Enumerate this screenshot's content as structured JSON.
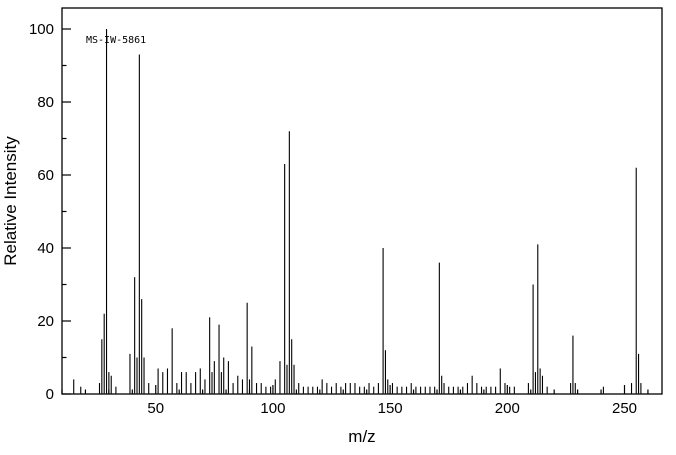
{
  "chart_data": {
    "type": "bar",
    "subtype": "mass-spectrum",
    "title": "",
    "annotation": "MS-IW-5861",
    "xlabel": "m/z",
    "ylabel": "Relative Intensity",
    "xlim": [
      10,
      266
    ],
    "ylim": [
      0,
      100
    ],
    "x_major_ticks": [
      50,
      100,
      150,
      200,
      250
    ],
    "x_minor_step": 10,
    "y_major_ticks": [
      0,
      20,
      40,
      60,
      80,
      100
    ],
    "y_minor_step": 10,
    "line_color": "#000000",
    "background_color": "#ffffff",
    "peaks": [
      [
        15,
        4
      ],
      [
        18,
        2
      ],
      [
        26,
        3
      ],
      [
        27,
        15
      ],
      [
        28,
        22
      ],
      [
        29,
        100
      ],
      [
        30,
        6
      ],
      [
        31,
        5
      ],
      [
        33,
        2
      ],
      [
        39,
        11
      ],
      [
        41,
        32
      ],
      [
        42,
        10
      ],
      [
        43,
        93
      ],
      [
        44,
        26
      ],
      [
        45,
        10
      ],
      [
        47,
        3
      ],
      [
        51,
        7
      ],
      [
        53,
        6
      ],
      [
        55,
        7
      ],
      [
        57,
        18
      ],
      [
        59,
        3
      ],
      [
        61,
        6
      ],
      [
        63,
        6
      ],
      [
        65,
        3
      ],
      [
        67,
        6
      ],
      [
        69,
        7
      ],
      [
        71,
        4
      ],
      [
        73,
        21
      ],
      [
        74,
        6
      ],
      [
        75,
        9
      ],
      [
        77,
        19
      ],
      [
        78,
        6
      ],
      [
        79,
        10
      ],
      [
        81,
        9
      ],
      [
        83,
        3
      ],
      [
        85,
        5
      ],
      [
        87,
        4
      ],
      [
        89,
        25
      ],
      [
        90,
        4
      ],
      [
        91,
        13
      ],
      [
        93,
        3
      ],
      [
        95,
        3
      ],
      [
        97,
        2
      ],
      [
        99,
        2
      ],
      [
        101,
        4
      ],
      [
        103,
        9
      ],
      [
        105,
        63
      ],
      [
        106,
        8
      ],
      [
        107,
        72
      ],
      [
        108,
        15
      ],
      [
        109,
        8
      ],
      [
        111,
        3
      ],
      [
        113,
        2
      ],
      [
        115,
        2
      ],
      [
        117,
        2
      ],
      [
        119,
        2
      ],
      [
        121,
        4
      ],
      [
        123,
        3
      ],
      [
        125,
        2
      ],
      [
        127,
        3
      ],
      [
        129,
        2
      ],
      [
        131,
        3
      ],
      [
        133,
        3
      ],
      [
        135,
        3
      ],
      [
        137,
        2
      ],
      [
        139,
        2
      ],
      [
        141,
        3
      ],
      [
        143,
        2
      ],
      [
        145,
        3
      ],
      [
        147,
        40
      ],
      [
        148,
        12
      ],
      [
        149,
        4
      ],
      [
        151,
        3
      ],
      [
        153,
        2
      ],
      [
        155,
        2
      ],
      [
        157,
        2
      ],
      [
        159,
        3
      ],
      [
        161,
        2
      ],
      [
        163,
        2
      ],
      [
        165,
        2
      ],
      [
        167,
        2
      ],
      [
        169,
        2
      ],
      [
        171,
        36
      ],
      [
        172,
        5
      ],
      [
        173,
        3
      ],
      [
        175,
        2
      ],
      [
        177,
        2
      ],
      [
        179,
        2
      ],
      [
        181,
        2
      ],
      [
        183,
        3
      ],
      [
        185,
        5
      ],
      [
        187,
        3
      ],
      [
        189,
        2
      ],
      [
        191,
        2
      ],
      [
        193,
        2
      ],
      [
        195,
        2
      ],
      [
        197,
        7
      ],
      [
        199,
        3
      ],
      [
        201,
        2
      ],
      [
        203,
        2
      ],
      [
        209,
        3
      ],
      [
        211,
        30
      ],
      [
        212,
        6
      ],
      [
        213,
        41
      ],
      [
        214,
        7
      ],
      [
        215,
        5
      ],
      [
        217,
        2
      ],
      [
        227,
        3
      ],
      [
        228,
        16
      ],
      [
        229,
        3
      ],
      [
        241,
        2
      ],
      [
        253,
        3
      ],
      [
        255,
        62
      ],
      [
        256,
        11
      ],
      [
        257,
        3
      ]
    ]
  }
}
